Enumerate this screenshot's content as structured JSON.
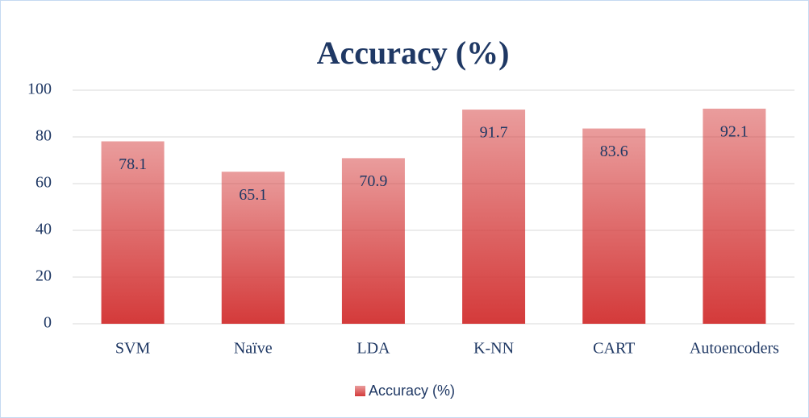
{
  "chart_data": {
    "type": "bar",
    "title": "Accuracy (%)",
    "categories": [
      "SVM",
      "Naïve",
      "LDA",
      "K-NN",
      "CART",
      "Autoencoders"
    ],
    "series": [
      {
        "name": "Accuracy (%)",
        "color": "#d43a3a",
        "values": [
          78.1,
          65.1,
          70.9,
          91.7,
          83.6,
          92.1
        ]
      }
    ],
    "ylim": [
      0,
      100
    ],
    "yticks": [
      0,
      20,
      40,
      60,
      80,
      100
    ],
    "grid": true,
    "legend": "bottom"
  }
}
